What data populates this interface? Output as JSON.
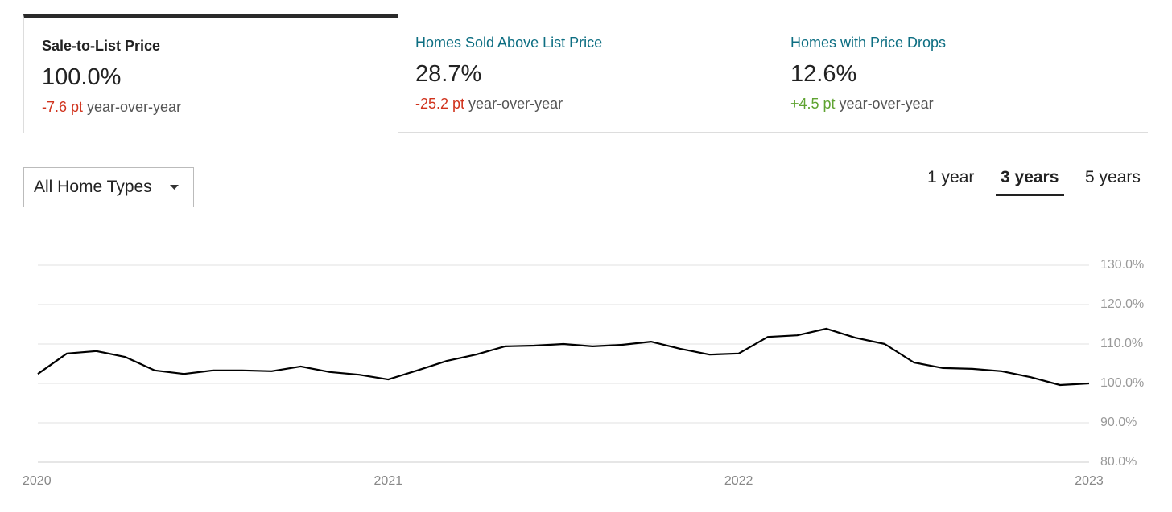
{
  "tabs": [
    {
      "title": "Sale-to-List Price",
      "value": "100.0%",
      "change": "-7.6 pt",
      "change_color": "#d0321c",
      "suffix": "year-over-year"
    },
    {
      "title": "Homes Sold Above List Price",
      "value": "28.7%",
      "change": "-25.2 pt",
      "change_color": "#d0321c",
      "suffix": "year-over-year"
    },
    {
      "title": "Homes with Price Drops",
      "value": "12.6%",
      "change": "+4.5 pt",
      "change_color": "#5fa332",
      "suffix": "year-over-year"
    }
  ],
  "active_tab": 0,
  "dropdown": {
    "label": "All Home Types"
  },
  "ranges": [
    "1 year",
    "3 years",
    "5 years"
  ],
  "active_range": 1,
  "chart_data": {
    "type": "line",
    "x": [
      2020,
      2020.083,
      2020.167,
      2020.25,
      2020.333,
      2020.417,
      2020.5,
      2020.583,
      2020.667,
      2020.75,
      2020.833,
      2020.917,
      2021,
      2021.083,
      2021.167,
      2021.25,
      2021.333,
      2021.417,
      2021.5,
      2021.583,
      2021.667,
      2021.75,
      2021.833,
      2021.917,
      2022,
      2022.083,
      2022.167,
      2022.25,
      2022.333,
      2022.417,
      2022.5,
      2022.583,
      2022.667,
      2022.75,
      2022.833,
      2022.917,
      2023
    ],
    "series": [
      {
        "name": "Sale-to-List Price",
        "color": "#000000",
        "values": [
          102.4,
          107.6,
          108.2,
          106.7,
          103.3,
          102.4,
          103.3,
          103.3,
          103.1,
          104.3,
          102.9,
          102.2,
          101.0,
          103.3,
          105.7,
          107.3,
          109.4,
          109.6,
          110.0,
          109.4,
          109.8,
          110.6,
          108.8,
          107.3,
          107.6,
          111.8,
          112.2,
          113.9,
          111.6,
          110.0,
          105.3,
          103.9,
          103.7,
          103.1,
          101.6,
          99.6,
          100.0
        ]
      }
    ],
    "xlim": [
      2020,
      2023
    ],
    "xticks": [
      2020,
      2021,
      2022,
      2023
    ],
    "ylim": [
      80,
      130
    ],
    "yticks": [
      {
        "value": 80,
        "label": "80.0%"
      },
      {
        "value": 90,
        "label": "90.0%"
      },
      {
        "value": 100,
        "label": "100.0%"
      },
      {
        "value": 110,
        "label": "110.0%"
      },
      {
        "value": 120,
        "label": "120.0%"
      },
      {
        "value": 130,
        "label": "130.0%"
      }
    ],
    "grid": true
  }
}
